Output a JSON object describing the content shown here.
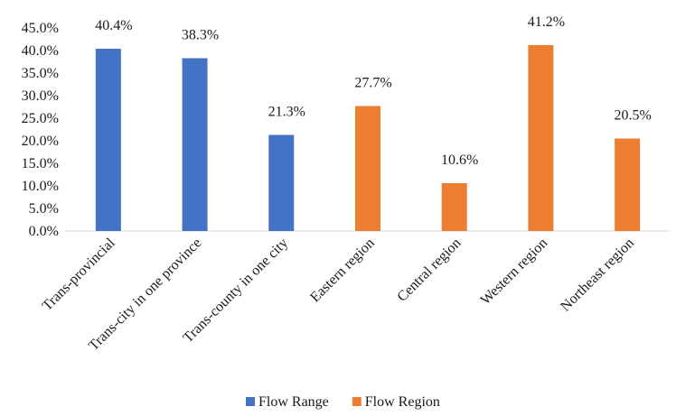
{
  "chart_data": {
    "type": "bar",
    "categories": [
      "Trans-provincial",
      "Trans-city in one province",
      "Trans-county in one city",
      "Eastern region",
      "Central region",
      "Western region",
      "Northeast region"
    ],
    "series": [
      {
        "name": "Flow Range",
        "color": "#4472C4",
        "values": [
          40.4,
          38.3,
          21.3,
          null,
          null,
          null,
          null
        ]
      },
      {
        "name": "Flow Region",
        "color": "#ED7D31",
        "values": [
          null,
          null,
          null,
          27.7,
          10.6,
          41.2,
          20.5
        ]
      }
    ],
    "y_ticks": [
      "0.0%",
      "5.0%",
      "10.0%",
      "15.0%",
      "20.0%",
      "25.0%",
      "30.0%",
      "35.0%",
      "40.0%",
      "45.0%"
    ],
    "ylim": [
      0,
      45
    ],
    "y_unit": "%",
    "grid": false,
    "legend_position": "bottom"
  }
}
